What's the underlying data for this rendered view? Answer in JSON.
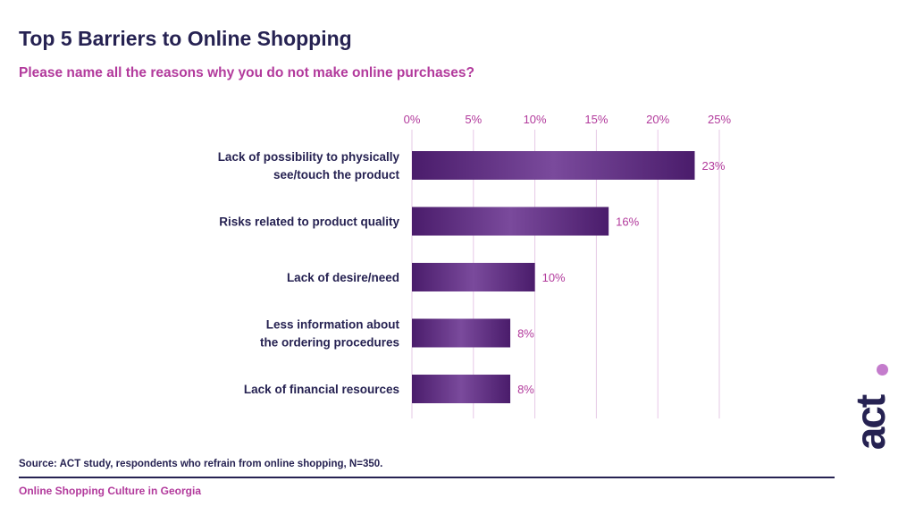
{
  "title": "Top 5 Barriers to Online Shopping",
  "subtitle": "Please name all the reasons why you do not make online purchases?",
  "source": "Source: ACT study, respondents who refrain from online shopping, N=350.",
  "footer": "Online Shopping Culture in Georgia",
  "logo_text": "act",
  "colors": {
    "title": "#262252",
    "accent": "#b23a9c",
    "bar_dark": "#4a1c6b",
    "bar_light": "#7a4a9c",
    "gridline": "#e6c8e6",
    "logo_dot": "#c47ccc"
  },
  "chart_data": {
    "type": "bar",
    "orientation": "horizontal",
    "categories": [
      [
        "Lack of possibility to physically",
        "see/touch the product"
      ],
      [
        "Risks related to product quality"
      ],
      [
        "Lack of desire/need"
      ],
      [
        "Less information about",
        "the ordering procedures"
      ],
      [
        "Lack of financial resources"
      ]
    ],
    "values": [
      23,
      16,
      10,
      8,
      8
    ],
    "data_labels": [
      "23%",
      "16%",
      "10%",
      "8%",
      "8%"
    ],
    "xlim": [
      0,
      25
    ],
    "xticks": [
      0,
      5,
      10,
      15,
      20,
      25
    ],
    "xtick_labels": [
      "0%",
      "5%",
      "10%",
      "15%",
      "20%",
      "25%"
    ],
    "x_axis_position": "top",
    "grid": true,
    "legend": "none"
  }
}
